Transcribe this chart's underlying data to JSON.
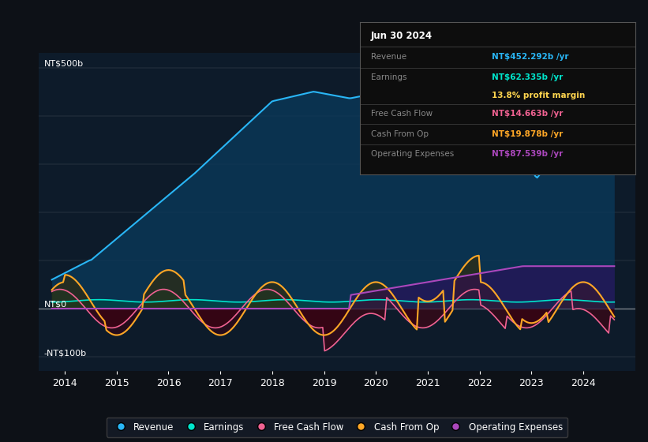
{
  "bg_color": "#0d1117",
  "plot_bg_color": "#0d1b2a",
  "ylim": [
    -130,
    530
  ],
  "xlim": [
    2013.5,
    2025.0
  ],
  "xticks": [
    2014,
    2015,
    2016,
    2017,
    2018,
    2019,
    2020,
    2021,
    2022,
    2023,
    2024
  ],
  "colors": {
    "revenue": "#29b6f6",
    "earnings": "#00e5cc",
    "free_cash_flow": "#f06292",
    "cash_from_op": "#ffa726",
    "operating_expenses": "#ab47bc"
  },
  "fill_colors": {
    "revenue": "#0a3a5c",
    "earnings": "#004d40",
    "fcf_pos": "#004d40",
    "fcf_neg": "#4a0010",
    "cop_pos": "#3a2a00",
    "cop_neg": "#3a0010",
    "op_exp": "#3a0060"
  },
  "info_box": {
    "title": "Jun 30 2024",
    "title_color": "#ffffff",
    "rows": [
      {
        "label": "Revenue",
        "value": "NT$452.292b /yr",
        "label_color": "#888888",
        "value_color": "#29b6f6"
      },
      {
        "label": "Earnings",
        "value": "NT$62.335b /yr",
        "label_color": "#888888",
        "value_color": "#00e5cc"
      },
      {
        "label": "",
        "value": "13.8% profit margin",
        "label_color": "#888888",
        "value_color": "#ffd54f"
      },
      {
        "label": "Free Cash Flow",
        "value": "NT$14.663b /yr",
        "label_color": "#888888",
        "value_color": "#f06292"
      },
      {
        "label": "Cash From Op",
        "value": "NT$19.878b /yr",
        "label_color": "#888888",
        "value_color": "#ffa726"
      },
      {
        "label": "Operating Expenses",
        "value": "NT$87.539b /yr",
        "label_color": "#888888",
        "value_color": "#ab47bc"
      }
    ]
  },
  "legend": [
    {
      "label": "Revenue",
      "color": "#29b6f6"
    },
    {
      "label": "Earnings",
      "color": "#00e5cc"
    },
    {
      "label": "Free Cash Flow",
      "color": "#f06292"
    },
    {
      "label": "Cash From Op",
      "color": "#ffa726"
    },
    {
      "label": "Operating Expenses",
      "color": "#ab47bc"
    }
  ]
}
